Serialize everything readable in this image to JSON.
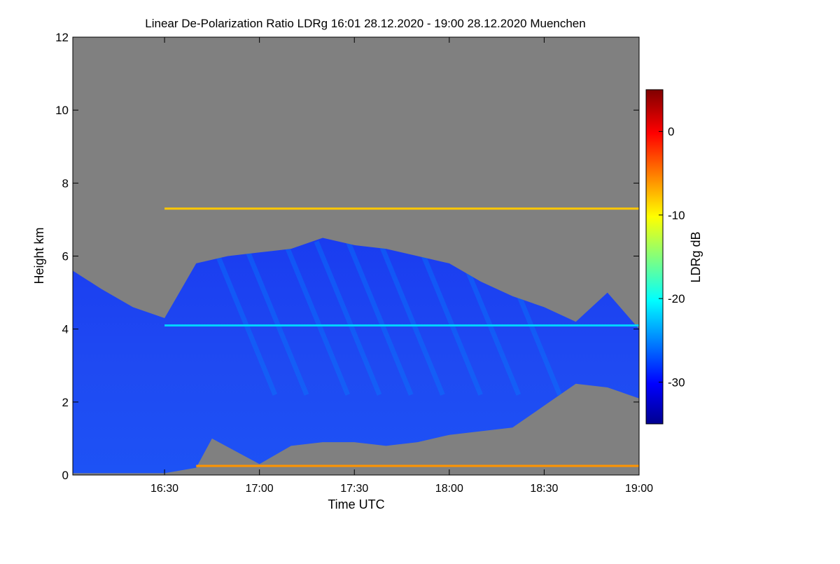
{
  "chart_data": {
    "type": "heatmap",
    "title": "Linear De-Polarization Ratio LDRg   16:01 28.12.2020 - 19:00 28.12.2020 Muenchen",
    "xlabel": "Time UTC",
    "ylabel": "Height km",
    "x_ticks": [
      "16:30",
      "17:00",
      "17:30",
      "18:00",
      "18:30",
      "19:00"
    ],
    "y_ticks": [
      "0",
      "2",
      "4",
      "6",
      "8",
      "10",
      "12"
    ],
    "xlim": [
      "16:01",
      "19:00"
    ],
    "ylim": [
      0,
      12
    ],
    "grid": false,
    "background_color": "#808080",
    "colorbar": {
      "label": "LDRg dB",
      "range": [
        -35,
        5
      ],
      "ticks": [
        "0",
        "-10",
        "-20",
        "-30"
      ],
      "colormap": "jet",
      "stops": [
        "#00008f",
        "#0000ff",
        "#00ffff",
        "#ffff00",
        "#ff0000",
        "#800000"
      ]
    },
    "features": {
      "cloud_top_km_vs_time": {
        "time": [
          "16:01",
          "16:10",
          "16:20",
          "16:30",
          "16:40",
          "16:50",
          "17:00",
          "17:10",
          "17:20",
          "17:30",
          "17:40",
          "17:50",
          "18:00",
          "18:10",
          "18:20",
          "18:30",
          "18:40",
          "18:50",
          "19:00"
        ],
        "top_km": [
          5.6,
          5.1,
          4.6,
          4.3,
          5.8,
          6.0,
          6.1,
          6.2,
          6.5,
          6.3,
          6.2,
          6.0,
          5.8,
          5.3,
          4.9,
          4.6,
          4.2,
          5.0,
          4.0
        ]
      },
      "cloud_base_km_vs_time": {
        "time": [
          "16:01",
          "16:30",
          "16:40",
          "16:45",
          "17:00",
          "17:10",
          "17:20",
          "17:30",
          "17:40",
          "17:50",
          "18:00",
          "18:10",
          "18:20",
          "18:30",
          "18:40",
          "18:50",
          "19:00"
        ],
        "base_km": [
          0.05,
          0.05,
          0.2,
          1.0,
          0.3,
          0.8,
          0.9,
          0.9,
          0.8,
          0.9,
          1.1,
          1.2,
          1.3,
          1.9,
          2.5,
          2.4,
          2.1
        ]
      },
      "layers": [
        {
          "height_km": 7.3,
          "from": "16:30",
          "to": "19:00",
          "ldr_db": -8
        },
        {
          "height_km": 0.25,
          "from": "16:40",
          "to": "19:00",
          "ldr_db": -6
        },
        {
          "height_km": 4.1,
          "from": "16:30",
          "to": "19:00",
          "ldr_db": -22
        }
      ],
      "typical_cloud_ldr_db": -29
    }
  }
}
